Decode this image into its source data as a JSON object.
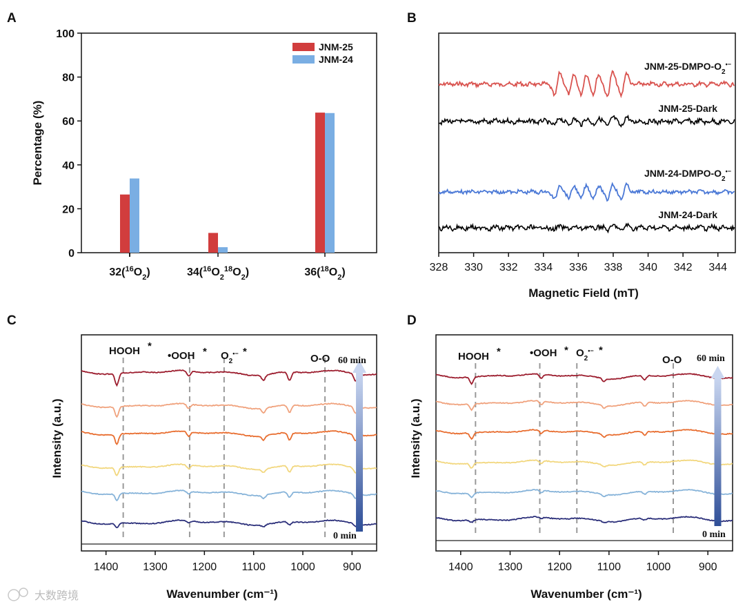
{
  "watermark": "大数跨境",
  "colors": {
    "jnm25": "#d13d3d",
    "jnm24": "#7aaee3",
    "epr_red": "#d9534f",
    "epr_blue": "#4a78d6",
    "dark": "#000000",
    "ir": [
      "#9c1d2e",
      "#f0a27d",
      "#e86d2f",
      "#f2d77e",
      "#86b3d9",
      "#2b2f7a",
      "#222222"
    ],
    "arrow": "#7f97c9",
    "dash": "#999999"
  },
  "chart_data": [
    {
      "id": "A",
      "panel_label": "A",
      "type": "bar",
      "ylabel": "Percentage (%)",
      "ylim": [
        0,
        100
      ],
      "yticks": [
        "0",
        "20",
        "40",
        "60",
        "80",
        "100"
      ],
      "categories": [
        {
          "main": "32(",
          "sup1": "16",
          "mid": "O",
          "sub1": "2",
          "sup2": "",
          "mid2": "",
          "sub2": "",
          "end": ")"
        },
        {
          "main": "34(",
          "sup1": "16",
          "mid": "O",
          "sub1": "2",
          "sup2": "18",
          "mid2": "O",
          "sub2": "2",
          "end": ")"
        },
        {
          "main": "36(",
          "sup1": "18",
          "mid": "O",
          "sub1": "2",
          "sup2": "",
          "mid2": "",
          "sub2": "",
          "end": ")"
        }
      ],
      "series": [
        {
          "name": "JNM-25",
          "values": [
            26.5,
            9.0,
            63.8
          ]
        },
        {
          "name": "JNM-24",
          "values": [
            33.8,
            2.5,
            63.6
          ]
        }
      ]
    },
    {
      "id": "B",
      "panel_label": "B",
      "type": "line",
      "xlabel": "Magnetic Field (mT)",
      "xlim": [
        328,
        345
      ],
      "xticks": [
        "328",
        "330",
        "332",
        "334",
        "336",
        "338",
        "340",
        "342",
        "344"
      ],
      "labels": {
        "red_main": "JNM-25-DMPO-O",
        "blue_main": "JNM-24-DMPO-O",
        "sub": "2",
        "sup": "•−",
        "dark25": "JNM-25-Dark",
        "dark24": "JNM-24-Dark"
      },
      "dmpo_peaks": [
        {
          "x": 334.8,
          "a": 1.0
        },
        {
          "x": 335.6,
          "a": 0.85
        },
        {
          "x": 336.3,
          "a": 0.9
        },
        {
          "x": 337.0,
          "a": 0.85
        },
        {
          "x": 337.8,
          "a": 1.0
        },
        {
          "x": 338.6,
          "a": 0.85
        }
      ]
    },
    {
      "id": "C",
      "panel_label": "C",
      "type": "line",
      "xlabel": "Wavenumber (cm⁻¹)",
      "ylabel": "Intensity (a.u.)",
      "xlim": [
        1450,
        850
      ],
      "xticks": [
        "1400",
        "1300",
        "1200",
        "1100",
        "1000",
        "900"
      ],
      "annotations": {
        "hooh": "HOOH",
        "ooh": "•OOH",
        "o2a": "O",
        "o2sub": "2",
        "o2sup": "•−",
        "star": "*",
        "oo": "O-O"
      },
      "dashed_lines": [
        1365,
        1230,
        1160,
        955
      ],
      "arrow_x": 885,
      "time_top": "60 min",
      "time_bottom": "0 min",
      "dips": [
        {
          "x": 1378,
          "d": 1.0
        },
        {
          "x": 1232,
          "d": 0.45
        },
        {
          "x": 1080,
          "d": 0.45
        },
        {
          "x": 1027,
          "d": 0.75
        },
        {
          "x": 893,
          "d": 0.6
        }
      ]
    },
    {
      "id": "D",
      "panel_label": "D",
      "type": "line",
      "xlabel": "Wavenumber (cm⁻¹)",
      "ylabel": "Intensity (a.u.)",
      "xlim": [
        1450,
        850
      ],
      "xticks": [
        "1400",
        "1300",
        "1200",
        "1100",
        "1000",
        "900"
      ],
      "annotations": {
        "hooh": "HOOH",
        "ooh": "•OOH",
        "o2a": "O",
        "o2sub": "2",
        "o2sup": "•−",
        "star": "*",
        "oo": "O-O"
      },
      "dashed_lines": [
        1370,
        1240,
        1165,
        970
      ],
      "arrow_x": 880,
      "time_top": "60 min",
      "time_bottom": "0 min",
      "dips": [
        {
          "x": 1378,
          "d": 0.6
        },
        {
          "x": 1237,
          "d": 0.35
        },
        {
          "x": 1110,
          "d": 0.25
        },
        {
          "x": 1028,
          "d": 0.4
        }
      ]
    }
  ]
}
